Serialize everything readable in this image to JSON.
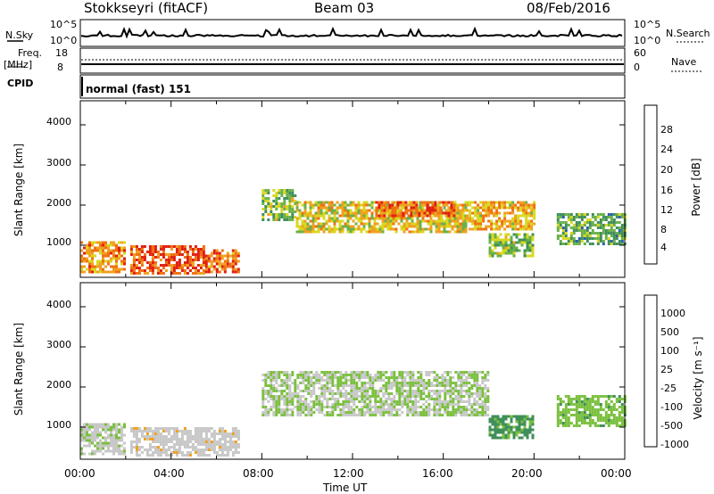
{
  "header": {
    "station": "Stokkseyri (fitACF)",
    "beam": "Beam 03",
    "date": "08/Feb/2016"
  },
  "noise_panel": {
    "left_label": "N.Sky",
    "right_label": "N.Search",
    "ticks_left": [
      "10^5",
      "10^0"
    ],
    "ticks_right": [
      "10^5",
      "10^0"
    ]
  },
  "freq_panel": {
    "left_label_1": "Freq.",
    "left_label_2": "[MHz]",
    "right_label": "Nave",
    "ticks_left": [
      "18",
      "8"
    ],
    "ticks_right": [
      "60",
      "0"
    ]
  },
  "cpid": {
    "label": "CPID",
    "mode": "normal (fast) 151"
  },
  "power_panel": {
    "ylabel": "Slant Range [km]",
    "yticks": [
      "4000",
      "3000",
      "2000",
      "1000"
    ],
    "colorbar_label": "Power [dB]",
    "colorbar_ticks": [
      "28",
      "24",
      "20",
      "16",
      "12",
      "8",
      "4"
    ],
    "colors": [
      "#1a1ae6",
      "#2a5fb0",
      "#3f8f5a",
      "#6ab04a",
      "#d8d820",
      "#f0a020",
      "#f07010",
      "#e02010"
    ]
  },
  "velocity_panel": {
    "ylabel": "Slant Range [km]",
    "yticks": [
      "4000",
      "3000",
      "2000",
      "1000"
    ],
    "colorbar_label": "Velocity [m s⁻¹]",
    "colorbar_ticks": [
      "1000",
      "500",
      "100",
      "25",
      "-25",
      "-100",
      "-500",
      "-1000"
    ],
    "colors": [
      "#1a1ae6",
      "#2a5fb0",
      "#3f8f5a",
      "#7cc040",
      "#c8c8c8",
      "#f0a020",
      "#f07010",
      "#e02010"
    ]
  },
  "xaxis": {
    "label": "Time UT",
    "ticks": [
      "00:00",
      "04:00",
      "08:00",
      "12:00",
      "16:00",
      "20:00",
      "00:00"
    ]
  },
  "chart_data": [
    {
      "type": "heatmap",
      "title": "Power [dB]",
      "xlabel": "Time UT",
      "ylabel": "Slant Range [km]",
      "xlim": [
        0,
        24
      ],
      "ylim": [
        200,
        4600
      ],
      "clim": [
        0,
        30
      ],
      "regions": [
        {
          "t": [
            0.0,
            2.0
          ],
          "range": [
            300,
            1100
          ],
          "level": 22
        },
        {
          "t": [
            2.2,
            5.5
          ],
          "range": [
            300,
            1000
          ],
          "level": 26
        },
        {
          "t": [
            5.5,
            7.0
          ],
          "range": [
            300,
            900
          ],
          "level": 24
        },
        {
          "t": [
            8.0,
            9.5
          ],
          "range": [
            1600,
            2400
          ],
          "level": 14
        },
        {
          "t": [
            9.5,
            17.0
          ],
          "range": [
            1300,
            2100
          ],
          "level": 18
        },
        {
          "t": [
            13.0,
            16.5
          ],
          "range": [
            1700,
            2100
          ],
          "level": 25
        },
        {
          "t": [
            17.0,
            20.0
          ],
          "range": [
            1400,
            2100
          ],
          "level": 20
        },
        {
          "t": [
            18.0,
            20.0
          ],
          "range": [
            700,
            1300
          ],
          "level": 14
        },
        {
          "t": [
            21.0,
            24.0
          ],
          "range": [
            1000,
            1800
          ],
          "level": 12
        }
      ]
    },
    {
      "type": "heatmap",
      "title": "Velocity [m s⁻¹]",
      "xlabel": "Time UT",
      "ylabel": "Slant Range [km]",
      "xlim": [
        0,
        24
      ],
      "ylim": [
        200,
        4600
      ],
      "clim": [
        -1000,
        1000
      ],
      "regions": [
        {
          "t": [
            0.0,
            2.0
          ],
          "range": [
            300,
            1100
          ],
          "level": 60
        },
        {
          "t": [
            2.2,
            7.0
          ],
          "range": [
            300,
            1000
          ],
          "level": 150
        },
        {
          "t": [
            8.0,
            18.0
          ],
          "range": [
            1300,
            2400
          ],
          "level": 0
        },
        {
          "t": [
            18.0,
            20.0
          ],
          "range": [
            700,
            1300
          ],
          "level": -300
        },
        {
          "t": [
            21.0,
            24.0
          ],
          "range": [
            1000,
            1800
          ],
          "level": -150
        }
      ]
    }
  ]
}
